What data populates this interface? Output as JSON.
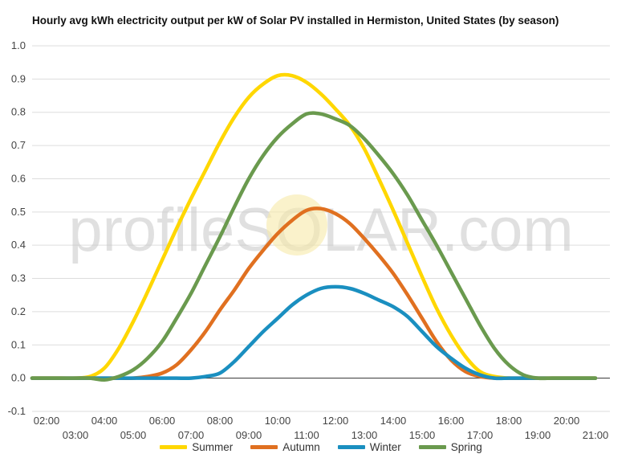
{
  "chart_data": {
    "type": "line",
    "title": "Hourly avg kWh electricity output per kW of Solar PV installed in Hermiston, United States (by season)",
    "xlabel": "",
    "ylabel": "",
    "ylim": [
      -0.1,
      1.0
    ],
    "yticks": [
      "-0.1",
      "0.0",
      "0.1",
      "0.2",
      "0.3",
      "0.4",
      "0.5",
      "0.6",
      "0.7",
      "0.8",
      "0.9",
      "1.0"
    ],
    "x": [
      "01:30",
      "02:00",
      "02:30",
      "03:00",
      "03:30",
      "04:00",
      "04:30",
      "05:00",
      "05:30",
      "06:00",
      "06:30",
      "07:00",
      "07:30",
      "08:00",
      "08:30",
      "09:00",
      "09:30",
      "10:00",
      "10:30",
      "11:00",
      "11:30",
      "12:00",
      "12:30",
      "13:00",
      "13:30",
      "14:00",
      "14:30",
      "15:00",
      "15:30",
      "16:00",
      "16:30",
      "17:00",
      "17:30",
      "18:00",
      "18:30",
      "19:00",
      "19:30",
      "20:00",
      "20:30",
      "21:00"
    ],
    "xtick_labels": [
      "02:00",
      "03:00",
      "04:00",
      "05:00",
      "06:00",
      "07:00",
      "08:00",
      "09:00",
      "10:00",
      "11:00",
      "12:00",
      "13:00",
      "14:00",
      "15:00",
      "16:00",
      "17:00",
      "18:00",
      "19:00",
      "20:00",
      "21:00"
    ],
    "grid": true,
    "legend_position": "bottom",
    "watermark": "profileSOLAR.com",
    "series": [
      {
        "name": "Summer",
        "color": "#FFD700",
        "values": [
          0,
          0,
          0,
          0,
          0.005,
          0.03,
          0.09,
          0.17,
          0.26,
          0.355,
          0.45,
          0.54,
          0.625,
          0.71,
          0.785,
          0.845,
          0.885,
          0.91,
          0.91,
          0.89,
          0.855,
          0.81,
          0.76,
          0.69,
          0.6,
          0.505,
          0.405,
          0.305,
          0.21,
          0.13,
          0.065,
          0.02,
          0.005,
          0,
          0,
          0,
          0,
          0,
          0,
          0
        ]
      },
      {
        "name": "Autumn",
        "color": "#E07020",
        "values": [
          0,
          0,
          0,
          0,
          0,
          0,
          0,
          0,
          0.005,
          0.015,
          0.04,
          0.085,
          0.14,
          0.205,
          0.265,
          0.33,
          0.385,
          0.435,
          0.475,
          0.505,
          0.51,
          0.495,
          0.465,
          0.42,
          0.37,
          0.315,
          0.25,
          0.18,
          0.11,
          0.055,
          0.02,
          0.005,
          0,
          0,
          0,
          0,
          0,
          0,
          0,
          0
        ]
      },
      {
        "name": "Winter",
        "color": "#1A8FC0",
        "values": [
          0,
          0,
          0,
          0,
          0,
          0,
          0,
          0,
          0,
          0,
          0,
          0,
          0.005,
          0.015,
          0.05,
          0.095,
          0.14,
          0.18,
          0.22,
          0.25,
          0.27,
          0.275,
          0.27,
          0.255,
          0.235,
          0.215,
          0.185,
          0.14,
          0.095,
          0.06,
          0.03,
          0.01,
          0,
          0,
          0,
          0,
          0,
          0,
          0,
          0
        ]
      },
      {
        "name": "Spring",
        "color": "#6A9A4E",
        "values": [
          0,
          0,
          0,
          0,
          0,
          -0.005,
          0.005,
          0.025,
          0.06,
          0.11,
          0.18,
          0.255,
          0.34,
          0.425,
          0.515,
          0.6,
          0.67,
          0.725,
          0.765,
          0.795,
          0.795,
          0.78,
          0.76,
          0.72,
          0.67,
          0.615,
          0.55,
          0.475,
          0.4,
          0.32,
          0.24,
          0.16,
          0.09,
          0.04,
          0.01,
          0,
          0,
          0,
          0,
          0
        ]
      }
    ]
  }
}
